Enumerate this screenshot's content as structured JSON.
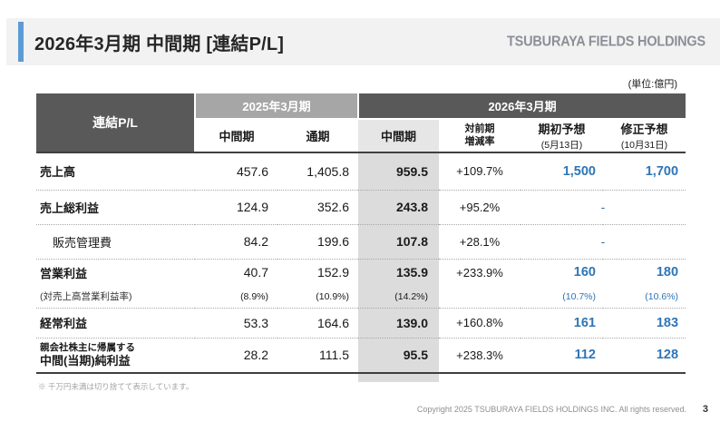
{
  "page": {
    "title": "2026年3月期 中間期 [連結P/L]",
    "logo": "TSUBURAYA FIELDS HOLDINGS",
    "unit_note": "(単位:億円)",
    "footnote": "※ 千万円未満は切り捨てて表示しています。",
    "copyright": "Copyright 2025 TSUBURAYA FIELDS HOLDINGS INC. All rights reserved.",
    "page_number": "3"
  },
  "colors": {
    "accent_blue": "#5b9bd5",
    "value_blue": "#2e75b6",
    "header_dark": "#595959",
    "header_mid_gray": "#a6a6a6",
    "column_gray": "#dcdcdc",
    "subheader_gray": "#e7e6e6",
    "band_gray": "#f2f2f2"
  },
  "table": {
    "corner_label": "連結P/L",
    "group_2025": "2025年3月期",
    "group_2026": "2026年3月期",
    "col_interim_2025": "中間期",
    "col_full_year": "通期",
    "col_interim_2026": "中間期",
    "col_yoy_line1": "対前期",
    "col_yoy_line2": "増減率",
    "col_initial_forecast": "期初予想",
    "col_initial_forecast_date": "(5月13日)",
    "col_revised_forecast": "修正予想",
    "col_revised_forecast_date": "(10月31日)",
    "rows": [
      {
        "label": "売上高",
        "interim2025": "457.6",
        "full2025": "1,405.8",
        "interim2026": "959.5",
        "yoy": "+109.7%",
        "initial": "1,500",
        "revised": "1,700"
      },
      {
        "label": "売上総利益",
        "interim2025": "124.9",
        "full2025": "352.6",
        "interim2026": "243.8",
        "yoy": "+95.2%",
        "dash": "-"
      },
      {
        "label": "販売管理費",
        "interim2025": "84.2",
        "full2025": "199.6",
        "interim2026": "107.8",
        "yoy": "+28.1%",
        "dash": "-"
      },
      {
        "label": "営業利益",
        "interim2025": "40.7",
        "full2025": "152.9",
        "interim2026": "135.9",
        "yoy": "+233.9%",
        "initial": "160",
        "revised": "180"
      },
      {
        "label": "(対売上高営業利益率)",
        "interim2025": "(8.9%)",
        "full2025": "(10.9%)",
        "interim2026": "(14.2%)",
        "initial": "(10.7%)",
        "revised": "(10.6%)"
      },
      {
        "label": "経常利益",
        "interim2025": "53.3",
        "full2025": "164.6",
        "interim2026": "139.0",
        "yoy": "+160.8%",
        "initial": "161",
        "revised": "183"
      },
      {
        "label_line1": "親会社株主に帰属する",
        "label_line2": "中間(当期)純利益",
        "interim2025": "28.2",
        "full2025": "111.5",
        "interim2026": "95.5",
        "yoy": "+238.3%",
        "initial": "112",
        "revised": "128"
      }
    ]
  }
}
